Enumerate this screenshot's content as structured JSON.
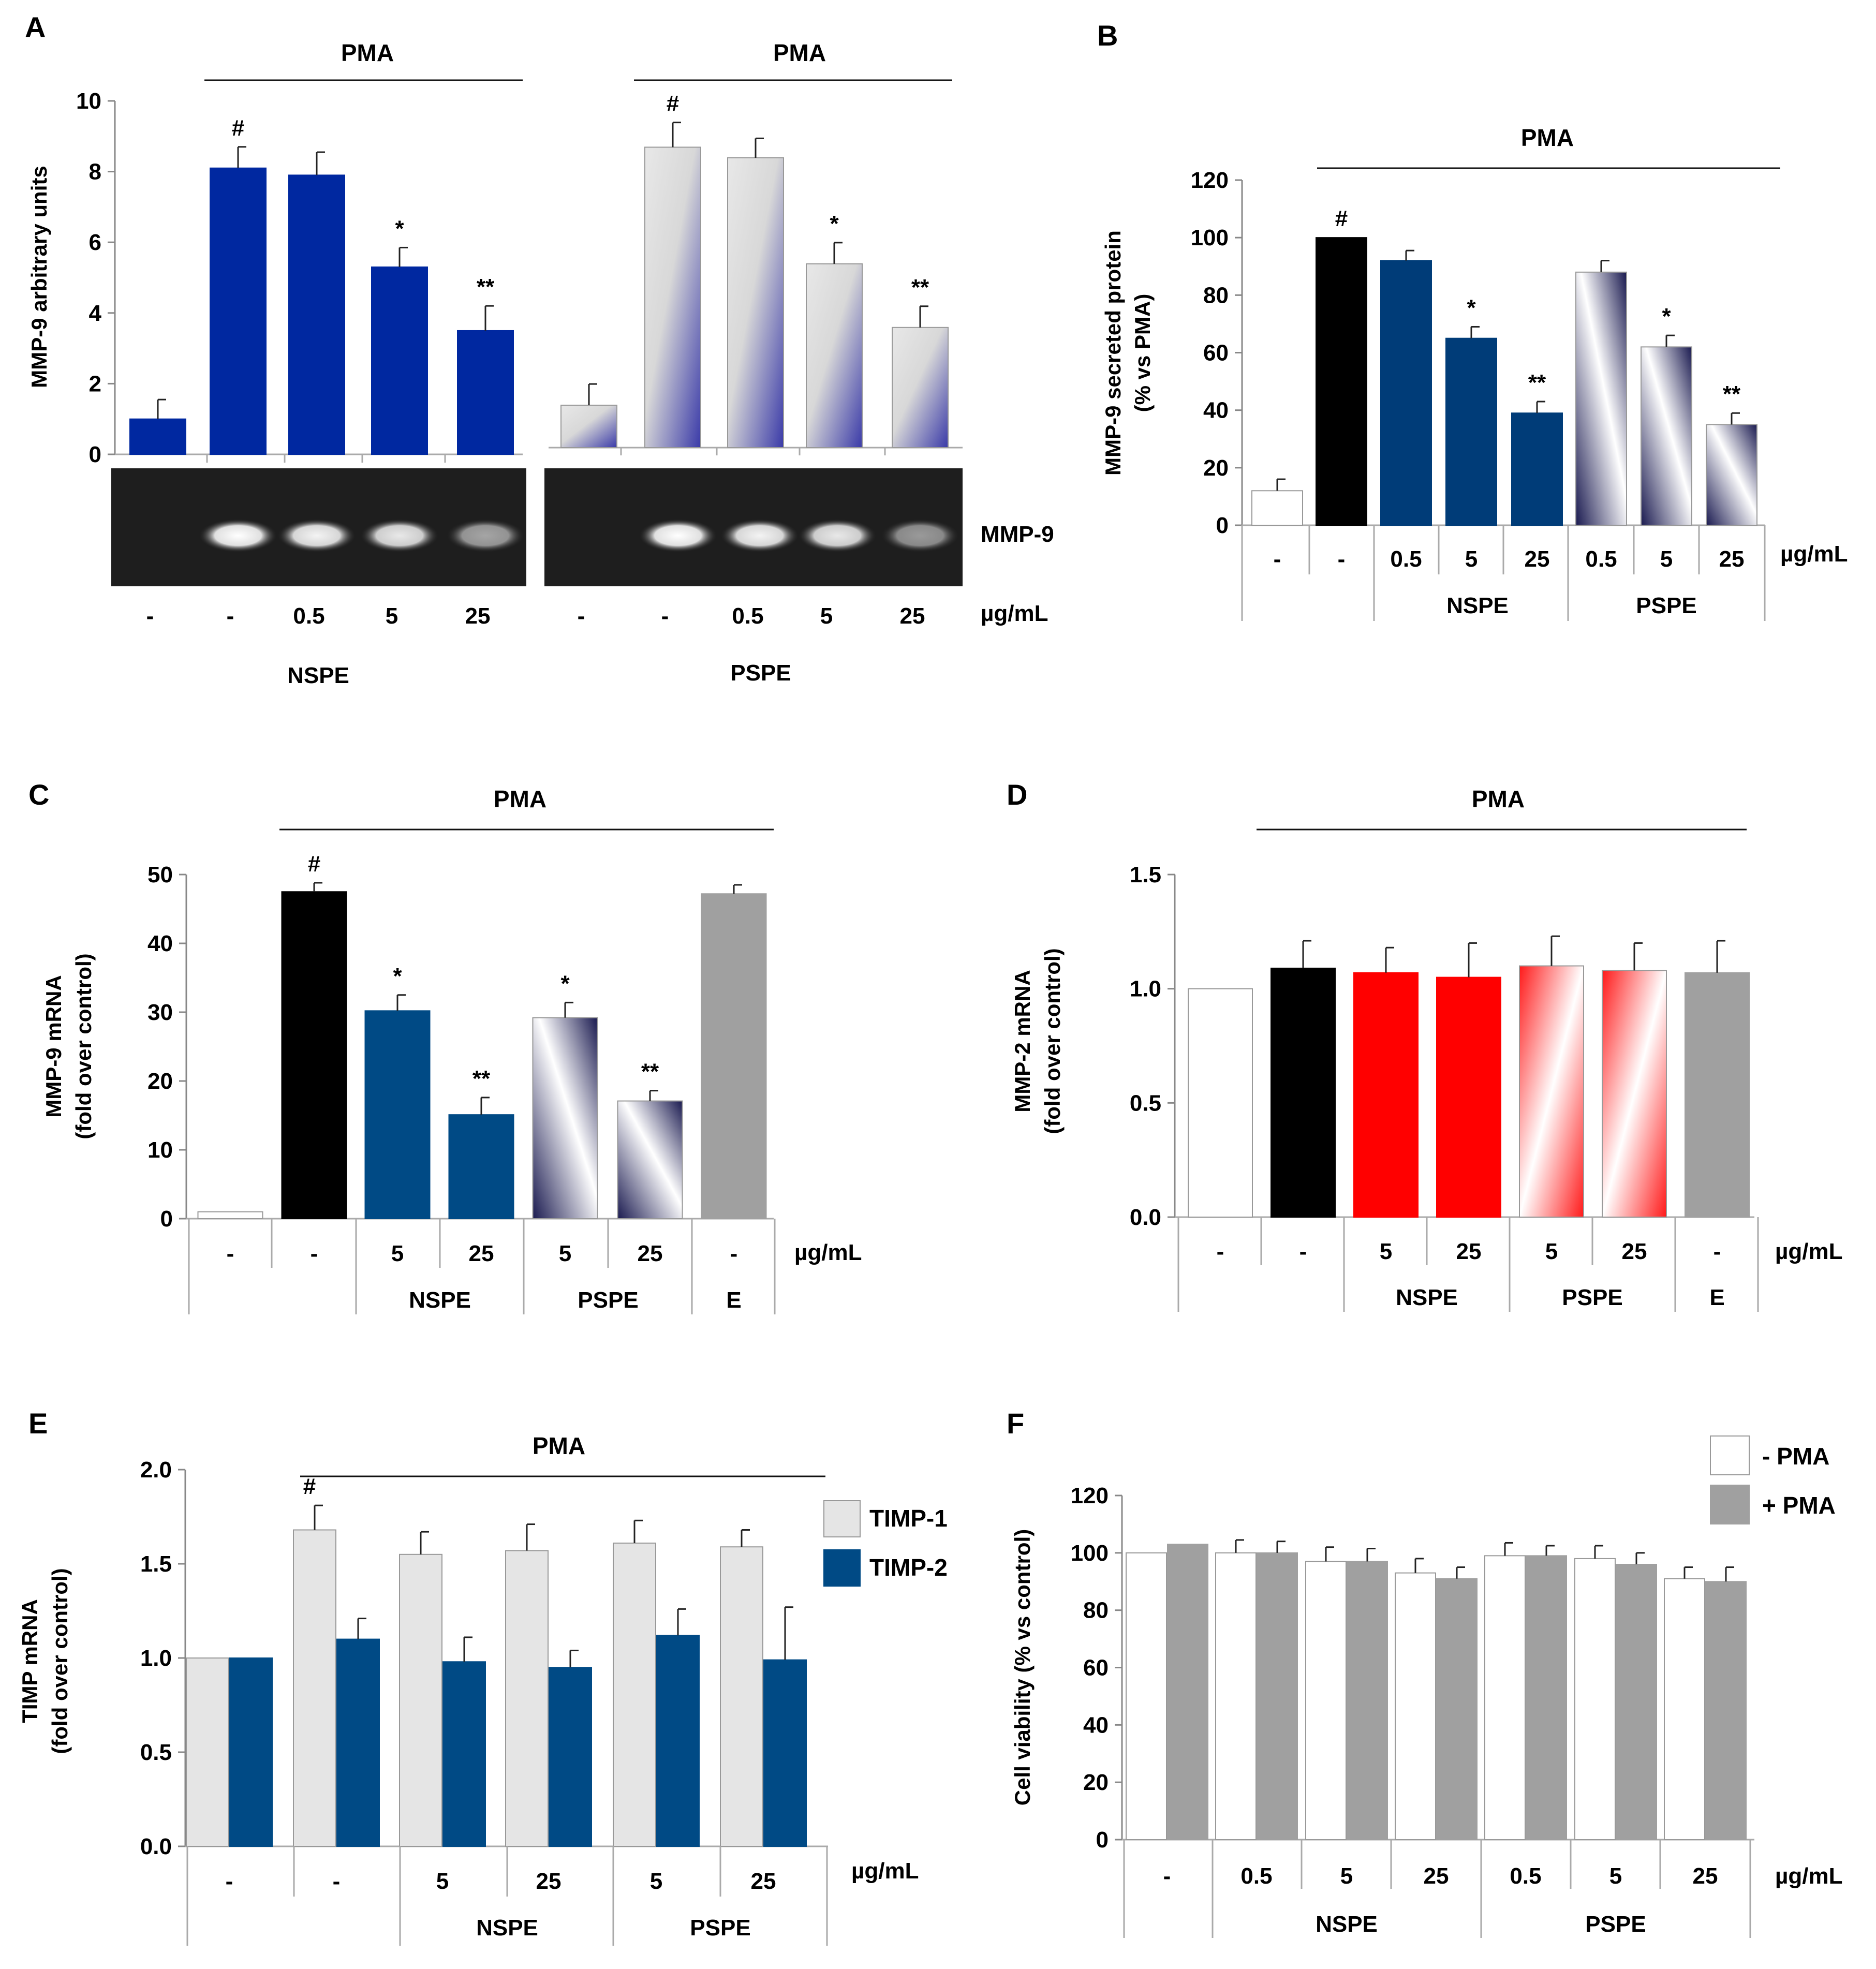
{
  "chart_data": [
    {
      "panel": "A",
      "type": "bar",
      "ylabel": "MMP-9 arbitrary units",
      "ylim": [
        0,
        10
      ],
      "yticks": [
        "0",
        "2",
        "4",
        "6",
        "8",
        "10"
      ],
      "pma_labels": [
        "PMA",
        "PMA"
      ],
      "unit": "µg/mL",
      "blot_label": "MMP-9",
      "blot_band_intensity": [
        [
          0,
          1,
          0.95,
          0.9,
          0.6
        ],
        [
          0,
          1,
          0.95,
          0.9,
          0.55
        ]
      ],
      "subgroups": [
        {
          "name": "NSPE",
          "categories": [
            "-",
            "-",
            "0.5",
            "5",
            "25"
          ],
          "values": [
            1.0,
            8.1,
            7.9,
            5.3,
            3.5
          ],
          "errors": [
            0.55,
            0.6,
            0.65,
            0.55,
            0.7
          ],
          "sig": [
            "",
            "#",
            "",
            "*",
            "**"
          ]
        },
        {
          "name": "PSPE",
          "categories": [
            "-",
            "-",
            "0.5",
            "5",
            "25"
          ],
          "values": [
            1.2,
            8.5,
            8.2,
            5.2,
            3.4
          ],
          "errors": [
            0.6,
            0.7,
            0.55,
            0.6,
            0.6
          ],
          "sig": [
            "",
            "#",
            "",
            "*",
            "**"
          ]
        }
      ],
      "colors": {
        "nspe": "#0028a0",
        "pspe_dark": "#3a3aa8",
        "pspe_light": "#d8d8d8"
      }
    },
    {
      "panel": "B",
      "type": "bar",
      "ylabel": "MMP-9 secreted protein",
      "ylabel2": "(% vs PMA)",
      "ylim": [
        0,
        120
      ],
      "yticks": [
        "0",
        "20",
        "40",
        "60",
        "80",
        "100",
        "120"
      ],
      "pma_label": "PMA",
      "unit": "µg/mL",
      "categories": [
        "-",
        "-",
        "0.5",
        "5",
        "25",
        "0.5",
        "5",
        "25"
      ],
      "values": [
        12,
        100,
        92,
        65,
        39,
        88,
        62,
        35
      ],
      "errors": [
        4,
        0,
        3.5,
        4,
        4,
        4,
        4,
        4
      ],
      "sig": [
        "",
        "#",
        "",
        "*",
        "**",
        "",
        "*",
        "**"
      ],
      "groups": [
        "NSPE",
        "PSPE"
      ]
    },
    {
      "panel": "C",
      "type": "bar",
      "ylabel": "MMP-9 mRNA",
      "ylabel2": "(fold over control)",
      "ylim": [
        0,
        50
      ],
      "yticks": [
        "0",
        "10",
        "20",
        "30",
        "40",
        "50"
      ],
      "pma_label": "PMA",
      "unit": "µg/mL",
      "categories": [
        "-",
        "-",
        "5",
        "25",
        "5",
        "25",
        "-"
      ],
      "values": [
        1,
        47.5,
        30.2,
        15.1,
        29.2,
        17.1,
        47.2
      ],
      "errors": [
        0,
        1.3,
        2.3,
        2.5,
        2.2,
        1.5,
        1.3
      ],
      "sig": [
        "",
        "#",
        "*",
        "**",
        "*",
        "**",
        ""
      ],
      "groups": [
        "NSPE",
        "PSPE",
        "E"
      ]
    },
    {
      "panel": "D",
      "type": "bar",
      "ylabel": "MMP-2 mRNA",
      "ylabel2": "(fold over control)",
      "ylim": [
        0,
        1.5
      ],
      "yticks": [
        "0.0",
        "0.5",
        "1.0",
        "1.5"
      ],
      "pma_label": "PMA",
      "unit": "µg/mL",
      "categories": [
        "-",
        "-",
        "5",
        "25",
        "5",
        "25",
        "-"
      ],
      "values": [
        1.0,
        1.09,
        1.07,
        1.05,
        1.1,
        1.08,
        1.07
      ],
      "errors": [
        0,
        0.12,
        0.11,
        0.15,
        0.13,
        0.12,
        0.14
      ],
      "groups": [
        "NSPE",
        "PSPE",
        "E"
      ]
    },
    {
      "panel": "E",
      "type": "bar",
      "ylabel": "TIMP mRNA",
      "ylabel2": "(fold over control)",
      "ylim": [
        0,
        2.0
      ],
      "yticks": [
        "0.0",
        "0.5",
        "1.0",
        "1.5",
        "2.0"
      ],
      "pma_label": "PMA",
      "unit": "µg/mL",
      "categories": [
        "-",
        "-",
        "5",
        "25",
        "5",
        "25"
      ],
      "series": [
        {
          "name": "TIMP-1",
          "values": [
            1.0,
            1.68,
            1.55,
            1.57,
            1.61,
            1.59
          ],
          "errors": [
            0,
            0.13,
            0.12,
            0.14,
            0.12,
            0.09
          ],
          "sig": [
            "",
            "#",
            "",
            "",
            "",
            ""
          ]
        },
        {
          "name": "TIMP-2",
          "values": [
            1.0,
            1.1,
            0.98,
            0.95,
            1.12,
            0.99
          ],
          "errors": [
            0,
            0.11,
            0.13,
            0.09,
            0.14,
            0.28
          ]
        }
      ],
      "groups": [
        "NSPE",
        "PSPE"
      ]
    },
    {
      "panel": "F",
      "type": "bar",
      "ylabel": "Cell viability (% vs control)",
      "ylim": [
        0,
        120
      ],
      "yticks": [
        "0",
        "20",
        "40",
        "60",
        "80",
        "100",
        "120"
      ],
      "unit": "µg/mL",
      "categories": [
        "-",
        "0.5",
        "5",
        "25",
        "0.5",
        "5",
        "25"
      ],
      "series": [
        {
          "name": "- PMA",
          "values": [
            100,
            100,
            97,
            93,
            99,
            98,
            91
          ],
          "errors": [
            0,
            4.5,
            5,
            5,
            4.5,
            4.5,
            4
          ]
        },
        {
          "name": "+ PMA",
          "values": [
            103,
            100,
            97,
            91,
            99,
            96,
            90
          ],
          "errors": [
            0,
            4,
            4.5,
            4,
            3.5,
            4,
            5
          ]
        }
      ],
      "groups": [
        "NSPE",
        "PSPE"
      ]
    }
  ]
}
